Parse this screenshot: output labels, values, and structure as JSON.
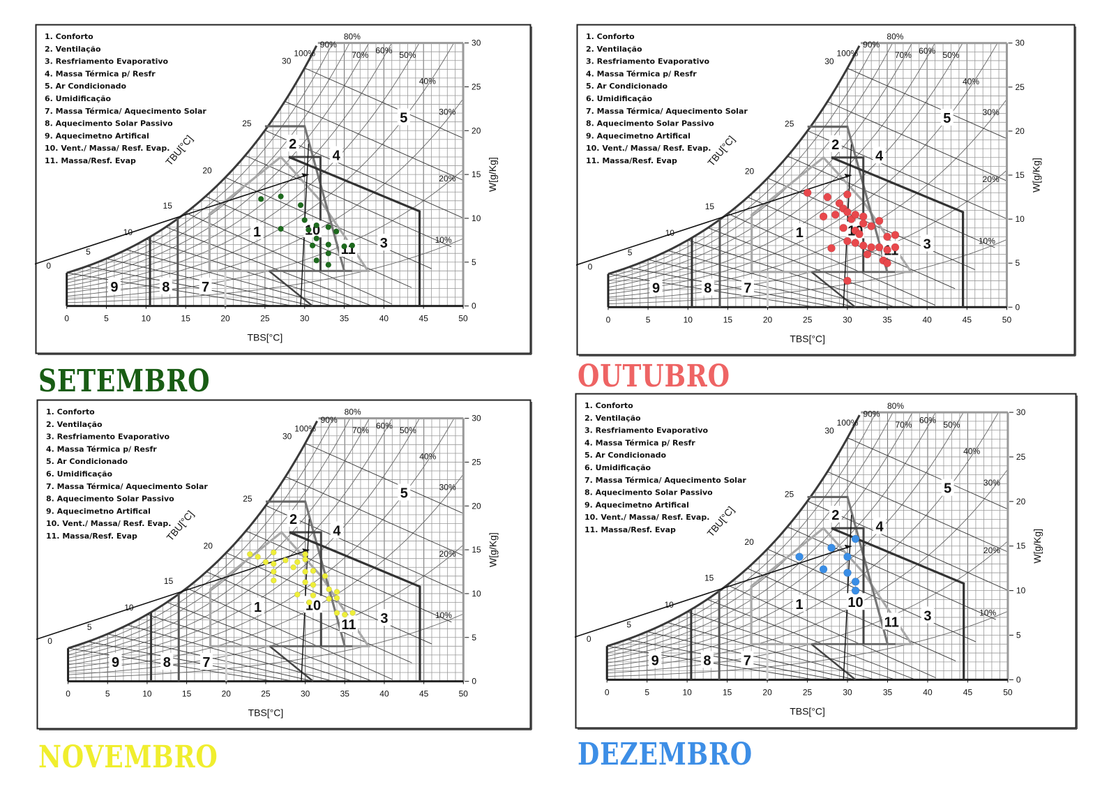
{
  "chart_data": [
    {
      "type": "scatter",
      "title": "SETEMBRO",
      "title_color": "#195c14",
      "point_color": "#1e6b1e",
      "xlabel": "TBS[°C]",
      "ylabel": "W[g/Kg]",
      "wet_bulb_label": "TBU[°C]",
      "xlim": [
        0,
        50
      ],
      "ylim": [
        0,
        30
      ],
      "x_ticks": [
        "0",
        "5",
        "10",
        "15",
        "20",
        "25",
        "30",
        "35",
        "40",
        "45",
        "50"
      ],
      "y_ticks": [
        "0",
        "5",
        "10",
        "15",
        "20",
        "25",
        "30"
      ],
      "rh_labels": [
        "100%",
        "90%",
        "80%",
        "70%",
        "60%",
        "50%",
        "40%",
        "30%",
        "20%",
        "10%"
      ],
      "wet_bulb_ticks": [
        "0",
        "5",
        "10",
        "15",
        "20",
        "25",
        "30"
      ],
      "zone_labels": [
        "1",
        "2",
        "3",
        "4",
        "5",
        "7",
        "8",
        "9",
        "10",
        "11"
      ],
      "legend": [
        "1.   Conforto",
        "2.   Ventilação",
        "3.   Resfriamento Evaporativo",
        "4.   Massa Térmica p/ Resfr",
        "5.   Ar Condicionado",
        "6.   Umidificação",
        "7.   Massa Térmica/ Aquecimento Solar",
        "8.   Aquecimento Solar Passivo",
        "9.   Aquecimetno Artifical",
        "10.  Vent./ Massa/ Resf. Evap.",
        "11.  Massa/Resf. Evap"
      ],
      "points": [
        [
          24.5,
          12.2
        ],
        [
          27,
          12.5
        ],
        [
          29.5,
          11.5
        ],
        [
          27,
          8.8
        ],
        [
          30,
          9.8
        ],
        [
          30.5,
          8.7
        ],
        [
          31.5,
          9.2
        ],
        [
          33,
          9.0
        ],
        [
          34,
          8.5
        ],
        [
          31.5,
          7.7
        ],
        [
          31,
          6.9
        ],
        [
          33,
          7.0
        ],
        [
          35,
          6.8
        ],
        [
          36,
          6.9
        ],
        [
          33,
          6.0
        ],
        [
          31.5,
          5.2
        ],
        [
          33,
          4.7
        ]
      ]
    },
    {
      "type": "scatter",
      "title": "OUTUBRO",
      "title_color": "#ee6464",
      "point_color": "#e8484c",
      "xlabel": "TBS[°C]",
      "ylabel": "W[g/Kg]",
      "wet_bulb_label": "TBU[°C]",
      "xlim": [
        0,
        50
      ],
      "ylim": [
        0,
        30
      ],
      "x_ticks": [
        "0",
        "5",
        "10",
        "15",
        "20",
        "25",
        "30",
        "35",
        "40",
        "45",
        "50"
      ],
      "y_ticks": [
        "0",
        "5",
        "10",
        "15",
        "20",
        "25",
        "30"
      ],
      "rh_labels": [
        "100%",
        "90%",
        "80%",
        "70%",
        "60%",
        "50%",
        "40%",
        "30%",
        "20%",
        "10%"
      ],
      "wet_bulb_ticks": [
        "0",
        "5",
        "10",
        "15",
        "20",
        "25",
        "30"
      ],
      "zone_labels": [
        "1",
        "2",
        "3",
        "4",
        "5",
        "7",
        "8",
        "9",
        "10",
        "11"
      ],
      "legend": [
        "1.   Conforto",
        "2.   Ventilação",
        "3.   Resfriamento Evaporativo",
        "4.   Massa Térmica p/ Resfr",
        "5.   Ar Condicionado",
        "6.   Umidificação",
        "7.   Massa Térmica/ Aquecimento Solar",
        "8.   Aquecimento Solar Passivo",
        "9.   Aquecimetno Artifical",
        "10.  Vent./ Massa/ Resf. Evap.",
        "11.  Massa/Resf. Evap"
      ],
      "points": [
        [
          25,
          13
        ],
        [
          27.5,
          12.5
        ],
        [
          30,
          12.8
        ],
        [
          29,
          11.8
        ],
        [
          29.5,
          11.2
        ],
        [
          30,
          10.8
        ],
        [
          28.5,
          10.5
        ],
        [
          27,
          10.3
        ],
        [
          30.5,
          10.0
        ],
        [
          31,
          10.5
        ],
        [
          32,
          10.3
        ],
        [
          32,
          9.5
        ],
        [
          33,
          9.2
        ],
        [
          34,
          9.8
        ],
        [
          29.5,
          9.0
        ],
        [
          31,
          8.7
        ],
        [
          31.5,
          8.3
        ],
        [
          35,
          8.0
        ],
        [
          36,
          8.2
        ],
        [
          30,
          7.5
        ],
        [
          31,
          7.3
        ],
        [
          32,
          7.0
        ],
        [
          33,
          6.8
        ],
        [
          34,
          6.8
        ],
        [
          35,
          6.5
        ],
        [
          36,
          6.8
        ],
        [
          32.5,
          6.0
        ],
        [
          28,
          6.7
        ],
        [
          34.5,
          5.3
        ],
        [
          35,
          5.0
        ],
        [
          30,
          3.0
        ]
      ]
    },
    {
      "type": "scatter",
      "title": "NOVEMBRO",
      "title_color": "#f0ee2e",
      "point_color": "#eeee3a",
      "xlabel": "TBS[°C]",
      "ylabel": "W[g/Kg]",
      "wet_bulb_label": "TBU[°C]",
      "xlim": [
        0,
        50
      ],
      "ylim": [
        0,
        30
      ],
      "x_ticks": [
        "0",
        "5",
        "10",
        "15",
        "20",
        "25",
        "30",
        "35",
        "40",
        "45",
        "50"
      ],
      "y_ticks": [
        "0",
        "5",
        "10",
        "15",
        "20",
        "25",
        "30"
      ],
      "rh_labels": [
        "100%",
        "90%",
        "80%",
        "70%",
        "60%",
        "50%",
        "40%",
        "30%",
        "20%",
        "10%"
      ],
      "wet_bulb_ticks": [
        "0",
        "5",
        "10",
        "15",
        "20",
        "25",
        "30"
      ],
      "zone_labels": [
        "1",
        "2",
        "3",
        "4",
        "5",
        "7",
        "8",
        "9",
        "10",
        "11"
      ],
      "legend": [
        "1.   Conforto",
        "2.   Ventilação",
        "3.   Resfriamento Evaporativo",
        "4.   Massa Térmica p/ Resfr",
        "5.   Ar Condicionado",
        "6.   Umidificação",
        "7.   Massa Térmica/ Aquecimento Solar",
        "8.   Aquecimento Solar Passivo",
        "9.   Aquecimetno Artifical",
        "10.  Vent./ Massa/ Resf. Evap.",
        "11.  Massa/Resf. Evap"
      ],
      "points": [
        [
          23,
          14.5
        ],
        [
          24,
          14.2
        ],
        [
          26,
          14.7
        ],
        [
          25,
          13.6
        ],
        [
          26,
          13.4
        ],
        [
          27.5,
          13.8
        ],
        [
          29,
          13.6
        ],
        [
          30,
          14.5
        ],
        [
          30,
          13.9
        ],
        [
          28.5,
          13.0
        ],
        [
          30,
          12.5
        ],
        [
          31,
          12.6
        ],
        [
          32.5,
          12.0
        ],
        [
          26,
          12.5
        ],
        [
          26,
          11.5
        ],
        [
          30,
          11.3
        ],
        [
          31,
          11.0
        ],
        [
          33,
          10.5
        ],
        [
          34,
          10.2
        ],
        [
          29,
          9.9
        ],
        [
          31,
          9.8
        ],
        [
          33,
          9.4
        ],
        [
          34,
          9.5
        ],
        [
          30.5,
          9.0
        ],
        [
          34,
          7.8
        ],
        [
          35,
          7.6
        ],
        [
          36,
          7.8
        ]
      ]
    },
    {
      "type": "scatter",
      "title": "DEZEMBRO",
      "title_color": "#3d8ee6",
      "point_color": "#3a8ee6",
      "xlabel": "TBS[°C]",
      "ylabel": "W[g/Kg]",
      "wet_bulb_label": "TBU[°C]",
      "xlim": [
        0,
        50
      ],
      "ylim": [
        0,
        30
      ],
      "x_ticks": [
        "0",
        "5",
        "10",
        "15",
        "20",
        "25",
        "30",
        "35",
        "40",
        "45",
        "50"
      ],
      "y_ticks": [
        "0",
        "5",
        "10",
        "15",
        "20",
        "25",
        "30"
      ],
      "rh_labels": [
        "100%",
        "90%",
        "80%",
        "70%",
        "60%",
        "50%",
        "40%",
        "30%",
        "20%",
        "10%"
      ],
      "wet_bulb_ticks": [
        "0",
        "5",
        "10",
        "15",
        "20",
        "25",
        "30"
      ],
      "zone_labels": [
        "1",
        "2",
        "3",
        "4",
        "5",
        "7",
        "8",
        "9",
        "10",
        "11"
      ],
      "legend": [
        "1.   Conforto",
        "2.   Ventilação",
        "3.   Resfriamento Evaporativo",
        "4.   Massa Térmica p/ Resfr",
        "5.   Ar Condicionado",
        "6.   Umidificação",
        "7.   Massa Térmica/ Aquecimento Solar",
        "8.   Aquecimento Solar Passivo",
        "9.   Aquecimetno Artifical",
        "10.  Vent./ Massa/ Resf. Evap.",
        "11.  Massa/Resf. Evap"
      ],
      "points": [
        [
          24,
          13.8
        ],
        [
          28,
          14.8
        ],
        [
          31,
          15.8
        ],
        [
          30,
          13.8
        ],
        [
          27,
          12.4
        ],
        [
          30,
          12.0
        ],
        [
          31,
          11.0
        ],
        [
          31,
          10.0
        ]
      ]
    }
  ]
}
